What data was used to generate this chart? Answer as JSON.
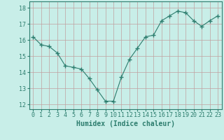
{
  "x": [
    0,
    1,
    2,
    3,
    4,
    5,
    6,
    7,
    8,
    9,
    10,
    11,
    12,
    13,
    14,
    15,
    16,
    17,
    18,
    19,
    20,
    21,
    22,
    23
  ],
  "y": [
    16.2,
    15.7,
    15.6,
    15.2,
    14.4,
    14.3,
    14.2,
    13.6,
    12.9,
    12.2,
    12.2,
    13.7,
    14.8,
    15.5,
    16.2,
    16.3,
    17.2,
    17.5,
    17.8,
    17.7,
    17.2,
    16.85,
    17.2,
    17.5
  ],
  "line_color": "#2d7d6e",
  "marker": "+",
  "marker_size": 4,
  "bg_color": "#c8eee8",
  "grid_color": "#c0a0a0",
  "xlabel": "Humidex (Indice chaleur)",
  "xlabel_fontsize": 7,
  "yticks": [
    12,
    13,
    14,
    15,
    16,
    17,
    18
  ],
  "xticks": [
    0,
    1,
    2,
    3,
    4,
    5,
    6,
    7,
    8,
    9,
    10,
    11,
    12,
    13,
    14,
    15,
    16,
    17,
    18,
    19,
    20,
    21,
    22,
    23
  ],
  "ylim": [
    11.7,
    18.4
  ],
  "xlim": [
    -0.5,
    23.5
  ],
  "tick_fontsize": 6,
  "spine_color": "#2d7d6e",
  "lw": 0.8
}
